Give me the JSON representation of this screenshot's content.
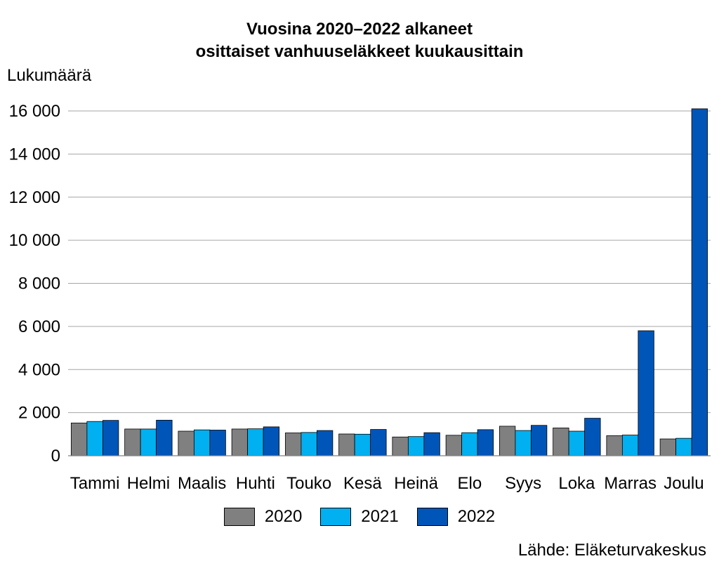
{
  "chart_data": {
    "type": "bar",
    "title_line1": "Vuosina 2020–2022 alkaneet",
    "title_line2": "osittaiset vanhuuseläkkeet kuukausittain",
    "ylabel": "Lukumäärä",
    "source": "Lähde: Eläketurvakeskus",
    "categories": [
      "Tammi",
      "Helmi",
      "Maalis",
      "Huhti",
      "Touko",
      "Kesä",
      "Heinä",
      "Elo",
      "Syys",
      "Loka",
      "Marras",
      "Joulu"
    ],
    "series": [
      {
        "name": "2020",
        "color": "#808080",
        "values": [
          1520,
          1240,
          1140,
          1240,
          1060,
          1010,
          870,
          950,
          1370,
          1290,
          930,
          780
        ]
      },
      {
        "name": "2021",
        "color": "#00B0F0",
        "values": [
          1590,
          1240,
          1200,
          1250,
          1080,
          1000,
          890,
          1070,
          1170,
          1140,
          960,
          810
        ]
      },
      {
        "name": "2022",
        "color": "#0055B8",
        "values": [
          1640,
          1650,
          1190,
          1340,
          1170,
          1220,
          1070,
          1210,
          1410,
          1740,
          5800,
          16100
        ]
      }
    ],
    "yticks": [
      "0",
      "2 000",
      "4 000",
      "6 000",
      "8 000",
      "10 000",
      "12 000",
      "14 000",
      "16 000"
    ],
    "ylim": [
      0,
      16000
    ],
    "grid": true,
    "legend_position": "bottom"
  }
}
